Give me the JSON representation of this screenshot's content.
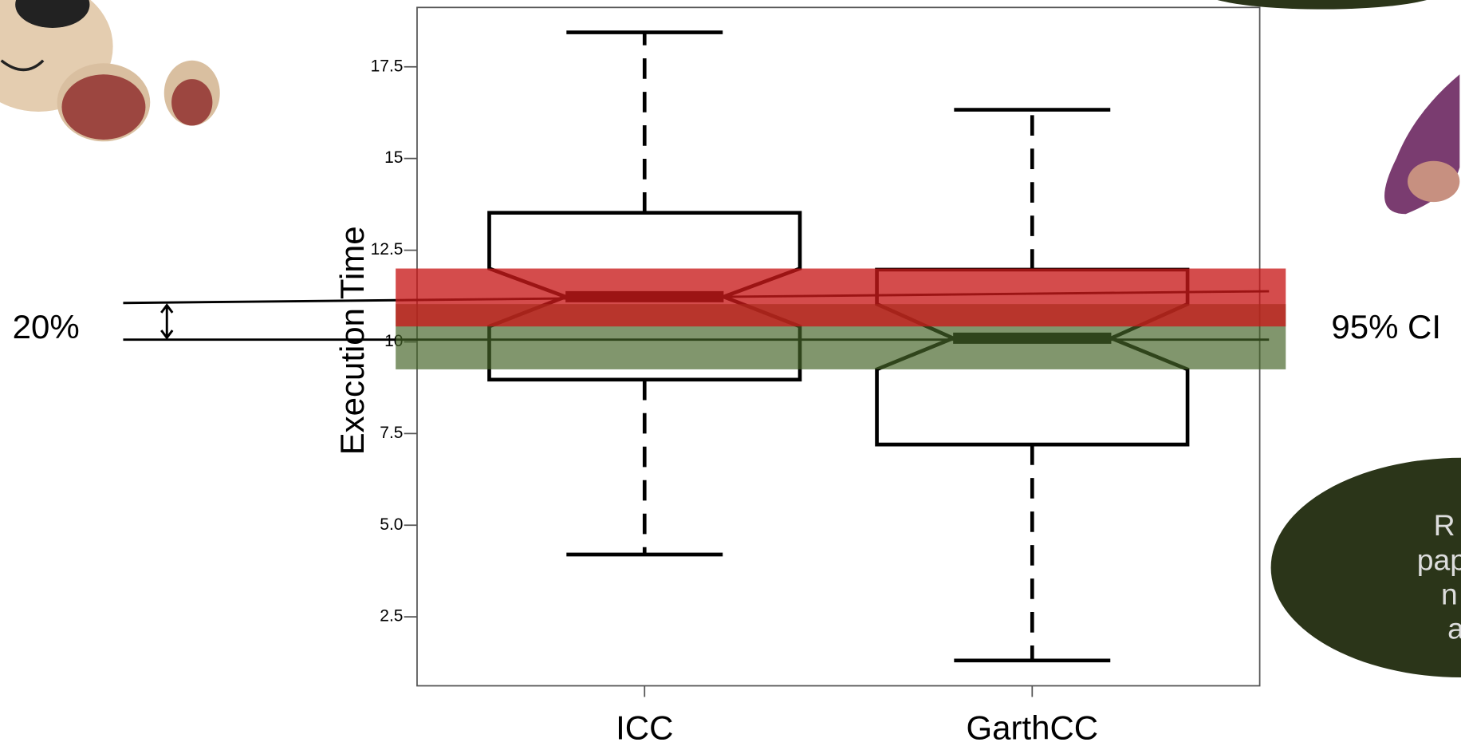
{
  "chart_data": {
    "type": "boxplot",
    "ylabel": "Execution Time",
    "categories": [
      "ICC",
      "GarthCC"
    ],
    "boxes": [
      {
        "low": 4.2,
        "q1": 8.97,
        "median": 11.23,
        "q3": 13.52,
        "high": 18.44,
        "notch": [
          10.42,
          12.0
        ]
      },
      {
        "low": 1.31,
        "q1": 7.2,
        "median": 10.1,
        "q3": 11.97,
        "high": 16.33,
        "notch": [
          9.25,
          11.03
        ]
      }
    ],
    "ylim": [
      0.62,
      19.12
    ],
    "yticks": [
      2.5,
      {
        "value": 5,
        "label": "5.0"
      },
      7.5,
      10,
      12.5,
      15,
      17.5
    ],
    "bands": [
      {
        "from": 9.25,
        "to": 11.03,
        "color": "rgba(70,100,40,0.68)"
      },
      {
        "from": 10.42,
        "to": 12.0,
        "color": "rgba(200,25,25,0.78)"
      }
    ],
    "lines": [
      {
        "from": 11.06,
        "to": 11.38
      },
      {
        "from": 10.06,
        "to": 10.06
      }
    ],
    "annotations": [
      "20%",
      "95% CI"
    ]
  },
  "bubble": {
    "lines": [
      "R",
      "pape",
      "n",
      "a"
    ]
  }
}
